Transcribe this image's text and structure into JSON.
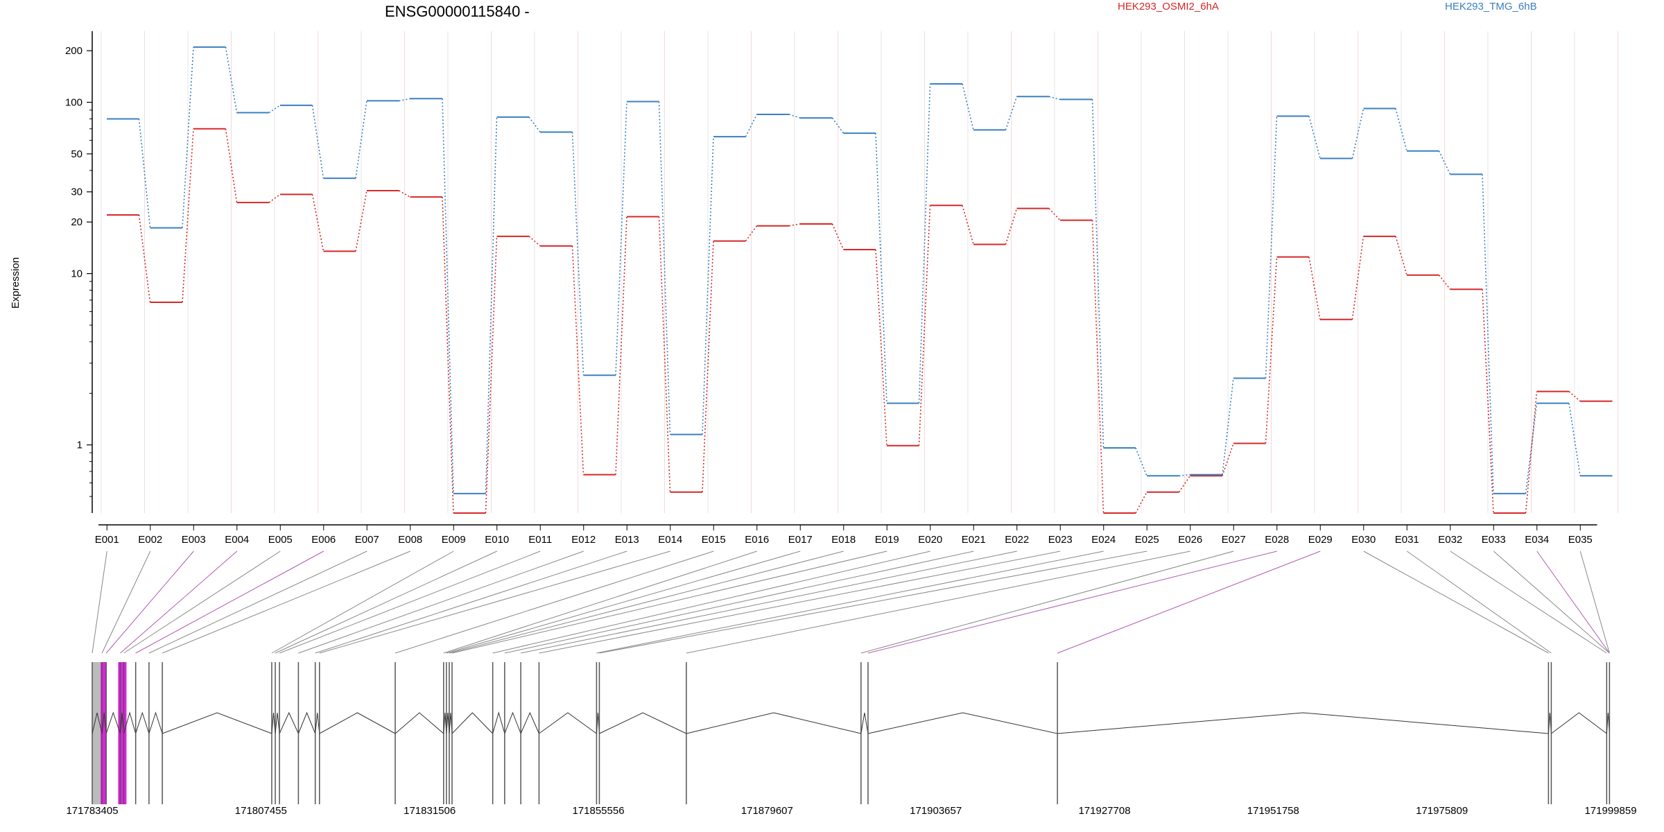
{
  "chart_data": {
    "type": "line",
    "title": "ENSG00000115840 -",
    "ylabel": "Expression",
    "yscale": "log",
    "ylim": [
      0.4,
      260
    ],
    "yticks": [
      1,
      10,
      20,
      30,
      50,
      100,
      200
    ],
    "categories": [
      "E001",
      "E002",
      "E003",
      "E004",
      "E005",
      "E006",
      "E007",
      "E008",
      "E009",
      "E010",
      "E011",
      "E012",
      "E013",
      "E014",
      "E015",
      "E016",
      "E017",
      "E018",
      "E019",
      "E020",
      "E021",
      "E022",
      "E023",
      "E024",
      "E025",
      "E026",
      "E027",
      "E028",
      "E029",
      "E030",
      "E031",
      "E032",
      "E033",
      "E034",
      "E035"
    ],
    "series": [
      {
        "name": "HEK293_OSMI2_6hA",
        "color": "#d62728",
        "values": [
          22,
          6.8,
          70,
          26,
          29,
          13.5,
          30.5,
          28,
          0.4,
          16.5,
          14.5,
          0.67,
          21.5,
          0.53,
          15.5,
          19,
          19.5,
          13.8,
          0.99,
          25,
          14.8,
          24,
          20.5,
          0.4,
          0.53,
          0.66,
          1.02,
          12.5,
          5.4,
          16.5,
          9.8,
          8.1,
          0.4,
          2.05,
          1.8
        ]
      },
      {
        "name": "HEK293_TMG_6hB",
        "color": "#3a7fc1",
        "values": [
          80,
          18.5,
          210,
          87,
          96,
          36,
          102,
          105,
          0.52,
          82,
          67,
          2.55,
          101,
          1.15,
          63,
          85,
          81,
          66,
          1.75,
          128,
          69,
          108,
          104,
          0.96,
          0.66,
          0.67,
          2.45,
          83,
          47,
          92,
          52,
          38,
          0.52,
          1.75,
          0.66
        ]
      }
    ],
    "grid": "vertical",
    "legend_placement": "top-right"
  },
  "gene_model": {
    "coordinates": [
      "171783405",
      "171807455",
      "171831506",
      "171855556",
      "171879607",
      "171903657",
      "171927708",
      "171951758",
      "171975809",
      "171999859"
    ],
    "genomic_range": [
      171783405,
      171999859
    ],
    "exon_positions": [
      171783405,
      171784800,
      171785400,
      171787400,
      171787900,
      171789600,
      171791500,
      171793400,
      171809000,
      171809500,
      171810100,
      171812800,
      171815200,
      171815800,
      171826600,
      171833500,
      171833900,
      171834300,
      171834700,
      171840500,
      171842200,
      171844500,
      171847100,
      171855300,
      171855700,
      171868100,
      171893000,
      171894000,
      171921000,
      171991000,
      171991400,
      171999300,
      171999700
    ],
    "exon_colors": {
      "default": "#555555",
      "highlight": "#dd22dd",
      "box": "#bbbbbb"
    },
    "line_color": "#888888",
    "highlight_line_color": "#b05ab0"
  }
}
